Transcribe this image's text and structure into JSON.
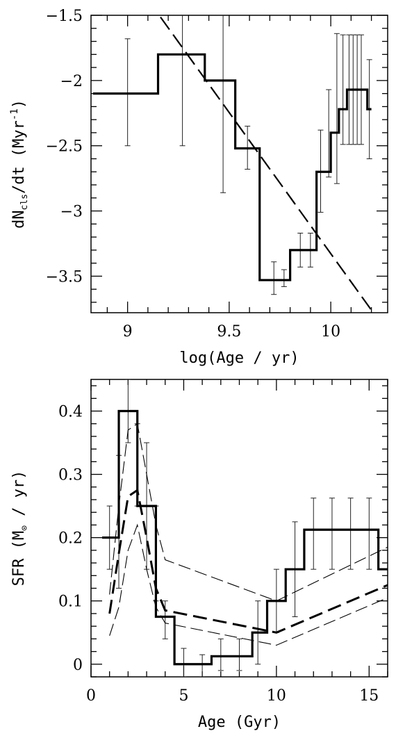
{
  "chart_data": [
    {
      "type": "line",
      "xlabel": "log(Age / yr)",
      "ylabel": "dN_cls/dt (Myr^-1)",
      "ylabel_parts": {
        "pre": "dN",
        "sub": "cls",
        "mid": "/dt (Myr",
        "sup": "-1",
        "post": ")"
      },
      "xlim": [
        8.82,
        10.28
      ],
      "ylim": [
        -3.78,
        -1.5
      ],
      "xticks": [
        9,
        9.5,
        10
      ],
      "xtick_labels": [
        "9",
        "9.5",
        "10"
      ],
      "yticks": [
        -1.5,
        -2,
        -2.5,
        -3,
        -3.5
      ],
      "ytick_labels": [
        "−1.5",
        "−2",
        "−2.5",
        "−3",
        "−3.5"
      ],
      "step_series": {
        "edges": [
          8.83,
          9.15,
          9.38,
          9.53,
          9.65,
          9.8,
          9.93,
          10.0,
          10.04,
          10.08,
          10.1,
          10.12,
          10.14,
          10.16,
          10.18,
          10.2
        ],
        "values": [
          -2.1,
          -1.8,
          -2.0,
          -2.52,
          -3.53,
          -3.3,
          -2.7,
          -2.4,
          -2.22,
          -2.07,
          -2.07,
          -2.07,
          -2.07,
          -2.07,
          -2.22
        ]
      },
      "error_bars": [
        {
          "x": 9.0,
          "y": -2.1,
          "lo": -2.5,
          "hi": -1.68
        },
        {
          "x": 9.27,
          "y": -1.8,
          "lo": -2.5,
          "hi": -1.2
        },
        {
          "x": 9.47,
          "y": -2.0,
          "lo": -2.86,
          "hi": -1.4
        },
        {
          "x": 9.59,
          "y": -2.52,
          "lo": -2.68,
          "hi": -2.35
        },
        {
          "x": 9.72,
          "y": -3.53,
          "lo": -3.64,
          "hi": -3.39
        },
        {
          "x": 9.77,
          "y": -3.53,
          "lo": -3.58,
          "hi": -3.45
        },
        {
          "x": 9.85,
          "y": -3.3,
          "lo": -3.43,
          "hi": -3.17
        },
        {
          "x": 9.9,
          "y": -3.3,
          "lo": -3.43,
          "hi": -3.17
        },
        {
          "x": 9.95,
          "y": -2.7,
          "lo": -3.01,
          "hi": -2.38
        },
        {
          "x": 9.99,
          "y": -2.4,
          "lo": -2.74,
          "hi": -2.07
        },
        {
          "x": 10.03,
          "y": -2.22,
          "lo": -2.79,
          "hi": -1.64
        },
        {
          "x": 10.06,
          "y": -2.07,
          "lo": -2.49,
          "hi": -1.65
        },
        {
          "x": 10.09,
          "y": -2.07,
          "lo": -2.49,
          "hi": -1.65
        },
        {
          "x": 10.11,
          "y": -2.07,
          "lo": -2.49,
          "hi": -1.65
        },
        {
          "x": 10.13,
          "y": -2.07,
          "lo": -2.49,
          "hi": -1.65
        },
        {
          "x": 10.15,
          "y": -2.07,
          "lo": -2.49,
          "hi": -1.65
        },
        {
          "x": 10.19,
          "y": -2.22,
          "lo": -2.6,
          "hi": -1.84
        }
      ],
      "dashed_line": {
        "x": [
          9.1,
          10.2
        ],
        "y": [
          -1.38,
          -3.76
        ]
      },
      "grid": false,
      "legend": "none"
    },
    {
      "type": "line",
      "xlabel": "Age (Gyr)",
      "ylabel": "SFR (M⊙ / yr)",
      "ylabel_parts": {
        "pre": "SFR (M",
        "sub": "⊙",
        "post": " / yr)"
      },
      "xlim": [
        0,
        16
      ],
      "ylim": [
        -0.02,
        0.45
      ],
      "xticks": [
        0,
        5,
        10,
        15
      ],
      "xtick_labels": [
        "0",
        "5",
        "10",
        "15"
      ],
      "yticks": [
        0,
        0.1,
        0.2,
        0.3,
        0.4
      ],
      "ytick_labels": [
        "0",
        "0.1",
        "0.2",
        "0.3",
        "0.4"
      ],
      "step_series": {
        "edges": [
          0.6,
          1.5,
          2.5,
          3.5,
          4.5,
          6.5,
          7.0,
          8.7,
          9.5,
          10.5,
          11.5,
          15.5,
          16.0
        ],
        "values": [
          0.2,
          0.4,
          0.25,
          0.075,
          0.0,
          0.0125,
          0.0125,
          0.05,
          0.1,
          0.15,
          0.2125,
          0.15
        ]
      },
      "error_bars": [
        {
          "x": 1.0,
          "y": 0.2,
          "lo": 0.15,
          "hi": 0.25
        },
        {
          "x": 1.5,
          "y": 0.2,
          "lo": 0.12,
          "hi": 0.33
        },
        {
          "x": 2.0,
          "y": 0.4,
          "lo": 0.35,
          "hi": 0.45
        },
        {
          "x": 2.5,
          "y": 0.4,
          "lo": 0.25,
          "hi": 0.38
        },
        {
          "x": 3.0,
          "y": 0.25,
          "lo": 0.15,
          "hi": 0.35
        },
        {
          "x": 3.5,
          "y": 0.25,
          "lo": 0.1,
          "hi": 0.25
        },
        {
          "x": 4.0,
          "y": 0.075,
          "lo": 0.04,
          "hi": 0.1
        },
        {
          "x": 5.0,
          "y": 0.0,
          "lo": -0.02,
          "hi": 0.025
        },
        {
          "x": 6.0,
          "y": 0.0,
          "lo": -0.02,
          "hi": 0.015
        },
        {
          "x": 7.0,
          "y": 0.0125,
          "lo": -0.01,
          "hi": 0.04
        },
        {
          "x": 8.0,
          "y": 0.0125,
          "lo": -0.01,
          "hi": 0.04
        },
        {
          "x": 9.0,
          "y": 0.05,
          "lo": 0.0,
          "hi": 0.1
        },
        {
          "x": 10.0,
          "y": 0.1,
          "lo": 0.05,
          "hi": 0.15
        },
        {
          "x": 11.0,
          "y": 0.15,
          "lo": 0.075,
          "hi": 0.225
        },
        {
          "x": 12.0,
          "y": 0.2125,
          "lo": 0.15,
          "hi": 0.2625
        },
        {
          "x": 13.0,
          "y": 0.2125,
          "lo": 0.15,
          "hi": 0.2625
        },
        {
          "x": 14.0,
          "y": 0.2125,
          "lo": 0.15,
          "hi": 0.2625
        },
        {
          "x": 15.0,
          "y": 0.2125,
          "lo": 0.15,
          "hi": 0.2625
        }
      ],
      "curves": [
        {
          "style": "thick-dashed",
          "x": [
            1.0,
            1.5,
            2.0,
            2.5,
            3.0,
            3.5,
            4.0,
            10.0,
            16.0
          ],
          "y": [
            0.08,
            0.175,
            0.265,
            0.275,
            0.2,
            0.12,
            0.085,
            0.05,
            0.125
          ]
        },
        {
          "style": "thin-dashed",
          "x": [
            1.0,
            1.5,
            2.0,
            2.5,
            3.0,
            3.5,
            4.0,
            10.0,
            16.0
          ],
          "y": [
            0.11,
            0.25,
            0.37,
            0.38,
            0.3,
            0.22,
            0.165,
            0.1,
            0.185
          ]
        },
        {
          "style": "thin-dashed",
          "x": [
            1.0,
            1.5,
            2.0,
            2.5,
            3.0,
            3.5,
            4.0,
            10.0,
            16.0
          ],
          "y": [
            0.045,
            0.09,
            0.18,
            0.22,
            0.15,
            0.09,
            0.065,
            0.03,
            0.105
          ]
        }
      ],
      "grid": false,
      "legend": "none"
    }
  ]
}
